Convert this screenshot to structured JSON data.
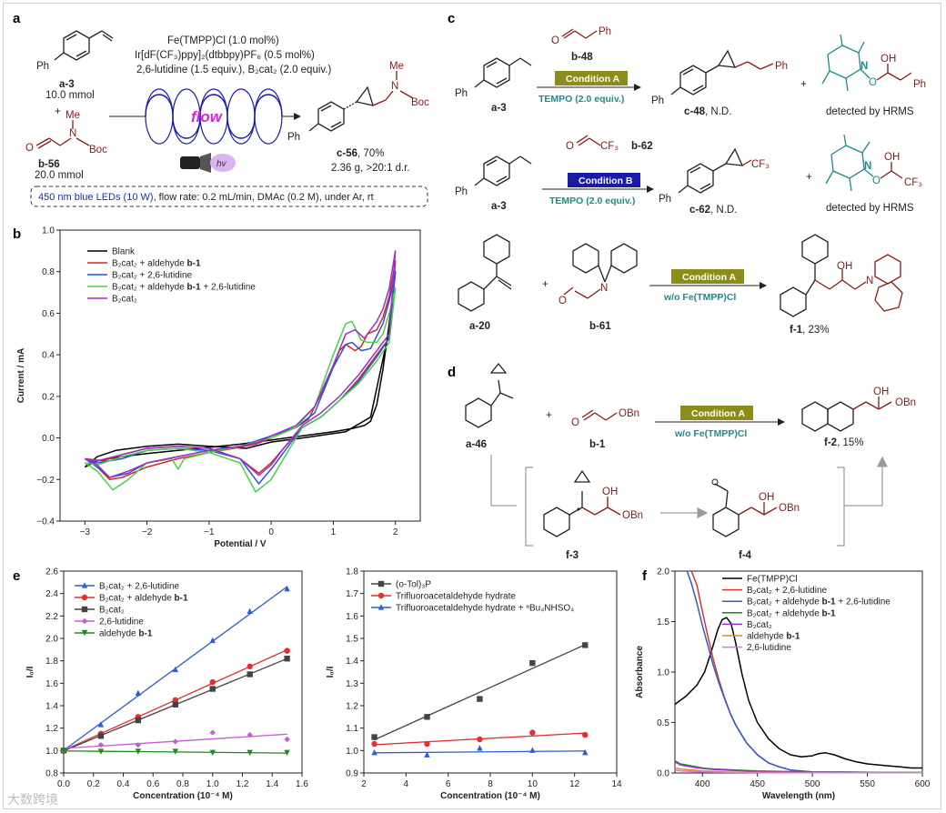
{
  "panel_letters": [
    "a",
    "b",
    "c",
    "d",
    "e",
    "f"
  ],
  "panel_a": {
    "conditions": [
      "Fe(TMPP)Cl (1.0 mol%)",
      "Ir[dF(CF₃)ppy]₂(dtbbpy)PF₆ (0.5 mol%)",
      "2,6-lutidine (1.5 equiv.), B₂cat₂ (2.0 equiv.)"
    ],
    "reactant1_id": "a-3",
    "reactant1_amount": "10.0 mmol",
    "reactant2_id": "b-56",
    "reactant2_amount": "20.0 mmol",
    "flow_label": "flow",
    "hv_label": "hv",
    "product_id": "c-56",
    "product_yield": ", 70%",
    "product_extra": "2.36 g, >20:1 d.r.",
    "banner_blue": "450 nm blue LEDs (10 W)",
    "banner_rest": ", flow rate: 0.2 mL/min, DMAc (0.2 M), under Ar, rt",
    "atoms": {
      "ph": "Ph",
      "me": "Me",
      "n": "N",
      "boc": "Boc",
      "o": "O",
      "plus": "+"
    }
  },
  "panel_b": {
    "xlabel": "Potential / V",
    "ylabel": "Current / mA",
    "xticks": [
      "−3",
      "−2",
      "−1",
      "0",
      "1",
      "2"
    ],
    "yticks": [
      "−0.4",
      "−0.2",
      "0.0",
      "0.2",
      "0.4",
      "0.6",
      "0.8",
      "1.0"
    ],
    "legend": [
      "Blank",
      "B₂cat₂ + aldehyde b-1",
      "B₂cat₂ + 2,6-lutidine",
      "B₂cat₂ + aldehyde b-1 + 2,6-lutidine",
      "B₂cat₂"
    ],
    "colors": [
      "#000000",
      "#d62728",
      "#3050d8",
      "#44d444",
      "#9b30c8"
    ]
  },
  "panel_c": {
    "r1": {
      "reagent_id": "b-48",
      "condition": "Condition A",
      "additive": "TEMPO (2.0 equiv.)",
      "substrate": "a-3",
      "product": "c-48",
      "product_status": ", N.D.",
      "detected": "detected by HRMS"
    },
    "r2": {
      "reagent_id": "b-62",
      "condition": "Condition B",
      "additive": "TEMPO (2.0 equiv.)",
      "substrate": "a-3",
      "product": "c-62",
      "product_status": ", N.D.",
      "detected": "detected by HRMS"
    },
    "r3": {
      "condition": "Condition A",
      "note": "w/o Fe(TMPP)Cl",
      "substrate": "a-20",
      "reagent_id": "b-61",
      "product": "f-1",
      "product_yield": ", 23%"
    },
    "atoms": {
      "ph": "Ph",
      "o": "O",
      "oh": "OH",
      "n": "N",
      "cf3": "CF₃",
      "plus": "+"
    }
  },
  "panel_d": {
    "substrate": "a-46",
    "reagent_id": "b-1",
    "condition": "Condition A",
    "note": "w/o Fe(TMPP)Cl",
    "product": "f-2",
    "product_yield": ", 15%",
    "int1": "f-3",
    "int2": "f-4",
    "atoms": {
      "obn": "OBn",
      "oh": "OH",
      "o": "O",
      "plus": "+"
    }
  },
  "chart_data": [
    {
      "type": "line",
      "title": "",
      "xlabel": "Potential / V",
      "ylabel": "Current / mA",
      "xlim": [
        -3.4,
        2.4
      ],
      "ylim": [
        -0.4,
        1.0
      ],
      "series": [
        {
          "name": "Blank",
          "color": "#000000",
          "x": [
            -3.0,
            -2.8,
            -2.4,
            -2.0,
            -1.5,
            -1.0,
            -0.5,
            0.0,
            0.5,
            1.0,
            1.3,
            1.5,
            1.6,
            1.7,
            1.8,
            1.9,
            2.0,
            1.9,
            1.6,
            1.2,
            0.5,
            0.0,
            -0.4,
            -1.0,
            -1.5,
            -2.0,
            -2.5,
            -2.8,
            -3.0
          ],
          "y": [
            -0.14,
            -0.11,
            -0.09,
            -0.075,
            -0.06,
            -0.045,
            -0.03,
            -0.01,
            0.01,
            0.03,
            0.045,
            0.06,
            0.08,
            0.16,
            0.33,
            0.55,
            0.8,
            0.52,
            0.1,
            0.03,
            0.0,
            -0.02,
            -0.05,
            -0.04,
            -0.03,
            -0.04,
            -0.06,
            -0.09,
            -0.14
          ]
        },
        {
          "name": "B₂cat₂ + aldehyde b-1",
          "color": "#d62728",
          "x": [
            -3.0,
            -2.8,
            -2.6,
            -2.4,
            -2.0,
            -1.5,
            -1.0,
            -0.6,
            -0.25,
            0.0,
            0.4,
            0.6,
            0.9,
            1.1,
            1.2,
            1.35,
            1.45,
            1.55,
            1.7,
            1.8,
            1.9,
            2.0,
            1.9,
            1.7,
            1.4,
            1.1,
            0.8,
            0.5,
            0.2,
            0.0,
            -0.2,
            -0.5,
            -1.0,
            -1.5,
            -2.0,
            -2.4,
            -2.7,
            -3.0
          ],
          "y": [
            -0.1,
            -0.14,
            -0.2,
            -0.19,
            -0.14,
            -0.1,
            -0.07,
            -0.05,
            -0.03,
            0.0,
            0.05,
            0.09,
            0.27,
            0.42,
            0.45,
            0.42,
            0.44,
            0.5,
            0.52,
            0.58,
            0.68,
            0.85,
            0.48,
            0.4,
            0.28,
            0.18,
            0.1,
            0.05,
            -0.05,
            -0.12,
            -0.17,
            -0.1,
            -0.05,
            -0.04,
            -0.05,
            -0.08,
            -0.11,
            -0.1
          ]
        },
        {
          "name": "B₂cat₂ + 2,6-lutidine",
          "color": "#3050d8",
          "x": [
            -3.0,
            -2.8,
            -2.6,
            -2.3,
            -2.0,
            -1.5,
            -1.0,
            -0.5,
            0.0,
            0.4,
            0.7,
            1.0,
            1.2,
            1.3,
            1.45,
            1.6,
            1.7,
            1.8,
            1.9,
            2.0,
            1.9,
            1.7,
            1.4,
            1.1,
            0.8,
            0.5,
            0.2,
            0.0,
            -0.2,
            -0.5,
            -1.0,
            -1.5,
            -2.0,
            -2.4,
            -2.8,
            -3.0
          ],
          "y": [
            -0.1,
            -0.14,
            -0.19,
            -0.17,
            -0.12,
            -0.09,
            -0.06,
            -0.04,
            0.01,
            0.05,
            0.12,
            0.34,
            0.45,
            0.46,
            0.42,
            0.43,
            0.49,
            0.55,
            0.66,
            0.8,
            0.48,
            0.39,
            0.27,
            0.18,
            0.1,
            0.05,
            -0.07,
            -0.15,
            -0.22,
            -0.1,
            -0.06,
            -0.05,
            -0.06,
            -0.1,
            -0.12,
            -0.1
          ]
        },
        {
          "name": "B₂cat₂ + aldehyde b-1 + 2,6-lutidine",
          "color": "#44d444",
          "x": [
            -3.0,
            -2.8,
            -2.55,
            -2.3,
            -2.0,
            -1.6,
            -1.5,
            -1.4,
            -1.0,
            -0.5,
            0.0,
            0.4,
            0.7,
            1.0,
            1.2,
            1.3,
            1.45,
            1.55,
            1.7,
            1.8,
            1.9,
            2.0,
            1.9,
            1.7,
            1.4,
            1.1,
            0.8,
            0.5,
            0.2,
            0.0,
            -0.25,
            -0.5,
            -1.0,
            -1.5,
            -2.0,
            -2.4,
            -2.8,
            -3.0
          ],
          "y": [
            -0.12,
            -0.16,
            -0.25,
            -0.2,
            -0.12,
            -0.1,
            -0.15,
            -0.1,
            -0.07,
            -0.04,
            0.0,
            0.05,
            0.15,
            0.4,
            0.55,
            0.56,
            0.47,
            0.46,
            0.46,
            0.5,
            0.6,
            0.72,
            0.46,
            0.37,
            0.26,
            0.18,
            0.1,
            0.05,
            -0.1,
            -0.2,
            -0.26,
            -0.12,
            -0.07,
            -0.05,
            -0.06,
            -0.09,
            -0.13,
            -0.12
          ]
        },
        {
          "name": "B₂cat₂",
          "color": "#9b30c8",
          "x": [
            -3.0,
            -2.8,
            -2.6,
            -2.3,
            -2.0,
            -1.5,
            -1.0,
            -0.5,
            -0.2,
            0.0,
            0.4,
            0.7,
            1.0,
            1.2,
            1.35,
            1.5,
            1.6,
            1.7,
            1.8,
            1.9,
            2.0,
            1.9,
            1.7,
            1.4,
            1.1,
            0.8,
            0.5,
            0.2,
            0.0,
            -0.2,
            -0.5,
            -1.0,
            -1.5,
            -2.0,
            -2.4,
            -2.8,
            -3.0
          ],
          "y": [
            -0.1,
            -0.13,
            -0.19,
            -0.16,
            -0.12,
            -0.09,
            -0.06,
            -0.04,
            -0.02,
            0.01,
            0.06,
            0.15,
            0.35,
            0.5,
            0.52,
            0.48,
            0.52,
            0.56,
            0.62,
            0.72,
            0.9,
            0.5,
            0.42,
            0.3,
            0.2,
            0.12,
            0.06,
            -0.05,
            -0.13,
            -0.18,
            -0.1,
            -0.05,
            -0.04,
            -0.05,
            -0.08,
            -0.11,
            -0.1
          ]
        }
      ]
    },
    {
      "type": "scatter",
      "title": "",
      "xlabel": "Concentration (10⁻⁴ M)",
      "ylabel": "I₀/I",
      "xlim": [
        0.0,
        1.6
      ],
      "ylim": [
        0.8,
        2.6
      ],
      "xticks": [
        "0.0",
        "0.2",
        "0.4",
        "0.6",
        "0.8",
        "1.0",
        "1.2",
        "1.4",
        "1.6"
      ],
      "yticks": [
        "0.8",
        "1.0",
        "1.2",
        "1.4",
        "1.6",
        "1.8",
        "2.0",
        "2.2",
        "2.4",
        "2.6"
      ],
      "x": [
        0.0,
        0.25,
        0.5,
        0.75,
        1.0,
        1.25,
        1.5
      ],
      "series": [
        {
          "name": "B₂cat₂ + 2,6-lutidine",
          "color": "#2c5bd4",
          "marker": "triangle",
          "values": [
            1.0,
            1.23,
            1.51,
            1.72,
            1.98,
            2.24,
            2.44
          ]
        },
        {
          "name": "B₂cat₂ + aldehyde b-1",
          "color": "#e03030",
          "marker": "circle",
          "values": [
            1.0,
            1.15,
            1.3,
            1.45,
            1.61,
            1.75,
            1.89
          ]
        },
        {
          "name": "B₂cat₂",
          "color": "#444444",
          "marker": "square",
          "values": [
            1.0,
            1.13,
            1.27,
            1.41,
            1.55,
            1.68,
            1.82
          ]
        },
        {
          "name": "2,6-lutidine",
          "color": "#c060d0",
          "marker": "diamond",
          "values": [
            1.0,
            1.05,
            1.05,
            1.08,
            1.16,
            1.14,
            1.1
          ]
        },
        {
          "name": "aldehyde b-1",
          "color": "#1e8a1e",
          "marker": "triangle-down",
          "values": [
            1.0,
            0.99,
            0.99,
            0.99,
            0.98,
            0.98,
            0.98
          ]
        }
      ]
    },
    {
      "type": "scatter",
      "title": "",
      "xlabel": "Concentration (10⁻⁴ M)",
      "ylabel": "I₀/I",
      "xlim": [
        2.0,
        14.0
      ],
      "ylim": [
        0.9,
        1.8
      ],
      "xticks": [
        "2",
        "4",
        "6",
        "8",
        "10",
        "12",
        "14"
      ],
      "yticks": [
        "0.9",
        "1.0",
        "1.1",
        "1.2",
        "1.3",
        "1.4",
        "1.5",
        "1.6",
        "1.7",
        "1.8"
      ],
      "x": [
        2.5,
        5.0,
        7.5,
        10.0,
        12.5
      ],
      "series": [
        {
          "name": "(o-Tol)₃P",
          "color": "#444444",
          "marker": "square",
          "values": [
            1.06,
            1.15,
            1.23,
            1.39,
            1.47
          ]
        },
        {
          "name": "Trifluoroacetaldehyde hydrate",
          "color": "#e03030",
          "marker": "circle",
          "values": [
            1.03,
            1.03,
            1.05,
            1.08,
            1.07
          ]
        },
        {
          "name": "Trifluoroacetaldehyde hydrate + ⁿBu₄NHSO₄",
          "color": "#2c5bd4",
          "marker": "triangle",
          "values": [
            0.99,
            0.98,
            1.01,
            1.0,
            0.99
          ]
        }
      ]
    },
    {
      "type": "line",
      "title": "",
      "xlabel": "Wavelength (nm)",
      "ylabel": "Absorbance",
      "xlim": [
        375,
        600
      ],
      "ylim": [
        0.0,
        2.0
      ],
      "xticks": [
        "400",
        "450",
        "500",
        "550",
        "600"
      ],
      "yticks": [
        "0.0",
        "0.5",
        "1.0",
        "1.5",
        "2.0"
      ],
      "series": [
        {
          "name": "Fe(TMPP)Cl",
          "color": "#000000",
          "x": [
            375,
            385,
            395,
            402,
            408,
            414,
            418,
            422,
            426,
            430,
            436,
            442,
            450,
            460,
            470,
            480,
            490,
            500,
            505,
            512,
            520,
            530,
            540,
            550,
            560,
            570,
            580,
            590,
            600
          ],
          "y": [
            0.68,
            0.76,
            0.87,
            1.0,
            1.2,
            1.42,
            1.52,
            1.54,
            1.48,
            1.3,
            0.98,
            0.72,
            0.5,
            0.34,
            0.24,
            0.18,
            0.16,
            0.17,
            0.19,
            0.2,
            0.18,
            0.14,
            0.11,
            0.09,
            0.08,
            0.07,
            0.06,
            0.05,
            0.05
          ]
        },
        {
          "name": "B₂cat₂ + 2,6-lutidine",
          "color": "#e03030",
          "x": [
            390,
            395,
            400,
            405,
            410,
            415,
            420,
            425,
            430,
            440,
            450,
            460,
            470,
            480,
            490,
            500
          ],
          "y": [
            2.0,
            1.86,
            1.6,
            1.35,
            1.12,
            0.92,
            0.75,
            0.6,
            0.48,
            0.3,
            0.18,
            0.1,
            0.06,
            0.03,
            0.02,
            0.01
          ]
        },
        {
          "name": "B₂cat₂ + aldehyde b-1 + 2,6-lutidine",
          "color": "#2c5bd4",
          "x": [
            386,
            390,
            395,
            400,
            405,
            410,
            415,
            420,
            425,
            430,
            440,
            450,
            460,
            470,
            480,
            490,
            500
          ],
          "y": [
            2.0,
            1.88,
            1.68,
            1.46,
            1.26,
            1.06,
            0.89,
            0.74,
            0.6,
            0.48,
            0.3,
            0.18,
            0.1,
            0.06,
            0.03,
            0.02,
            0.01
          ]
        },
        {
          "name": "B₂cat₂ + aldehyde b-1",
          "color": "#1e8a1e",
          "x": [
            375,
            380,
            390,
            400,
            410,
            420,
            430,
            440,
            450,
            470,
            500,
            530,
            560,
            600
          ],
          "y": [
            0.12,
            0.09,
            0.07,
            0.05,
            0.04,
            0.035,
            0.03,
            0.025,
            0.02,
            0.015,
            0.01,
            0.01,
            0.005,
            0.005
          ]
        },
        {
          "name": "B₂cat₂",
          "color": "#9b30c8",
          "x": [
            375,
            380,
            390,
            400,
            410,
            420,
            430,
            440,
            450,
            470,
            500,
            530,
            560,
            600
          ],
          "y": [
            0.11,
            0.08,
            0.06,
            0.045,
            0.035,
            0.03,
            0.025,
            0.02,
            0.015,
            0.01,
            0.008,
            0.005,
            0.004,
            0.003
          ]
        },
        {
          "name": "aldehyde b-1",
          "color": "#d98a2a",
          "x": [
            375,
            380,
            390,
            400,
            420,
            450,
            500,
            550,
            600
          ],
          "y": [
            0.05,
            0.04,
            0.03,
            0.02,
            0.01,
            0.005,
            0.003,
            0.002,
            0.002
          ]
        },
        {
          "name": "2,6-lutidine",
          "color": "#e070e0",
          "x": [
            375,
            380,
            390,
            400,
            420,
            450,
            500,
            550,
            600
          ],
          "y": [
            0.03,
            0.02,
            0.015,
            0.01,
            0.006,
            0.004,
            0.003,
            0.002,
            0.002
          ]
        }
      ]
    }
  ],
  "watermark": "大数跨境"
}
